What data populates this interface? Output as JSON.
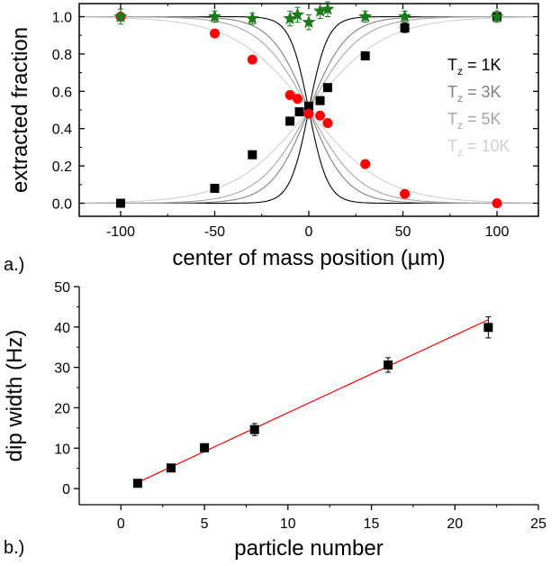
{
  "chart_data": [
    {
      "type": "scatter",
      "panel_label": "a.)",
      "xlabel": "center of mass position  (µm)",
      "ylabel": "extracted fraction",
      "xlim": [
        -122,
        122
      ],
      "ylim": [
        -0.07,
        1.07
      ],
      "xticks": [
        -100,
        -50,
        0,
        50,
        100
      ],
      "xtick_labels": [
        "-100",
        "-50",
        "0",
        "50",
        "100"
      ],
      "yticks": [
        0.0,
        0.2,
        0.4,
        0.6,
        0.8,
        1.0
      ],
      "ytick_labels": [
        "0.0",
        "0.2",
        "0.4",
        "0.6",
        "0.8",
        "1.0"
      ],
      "grid": false,
      "legend_position": "right",
      "legend": [
        {
          "prefix": "T",
          "sub": "z",
          "rest": " = 1K",
          "color": "#000000"
        },
        {
          "prefix": "T",
          "sub": "z",
          "rest": " = 3K",
          "color": "#7f7f7f"
        },
        {
          "prefix": "T",
          "sub": "z",
          "rest": " = 5K",
          "color": "#a6a6a6"
        },
        {
          "prefix": "T",
          "sub": "z",
          "rest": " = 10K",
          "color": "#cfcfcf"
        }
      ],
      "series": [
        {
          "marker": "square",
          "color": "#000000",
          "x": [
            -100,
            -50,
            -30,
            -10,
            -5,
            0,
            6,
            10,
            30,
            51,
            100
          ],
          "y": [
            0.0,
            0.08,
            0.26,
            0.44,
            0.49,
            0.52,
            0.55,
            0.62,
            0.79,
            0.94,
            1.0
          ],
          "err": [
            0.02,
            0.02,
            0.02,
            0.02,
            0.02,
            0.02,
            0.02,
            0.02,
            0.02,
            0.025,
            0.02
          ]
        },
        {
          "marker": "circle",
          "color": "#ff0000",
          "x": [
            -100,
            -50,
            -30,
            -10,
            -6,
            0,
            6,
            10,
            30,
            51,
            100
          ],
          "y": [
            1.0,
            0.91,
            0.77,
            0.58,
            0.56,
            0.48,
            0.47,
            0.43,
            0.21,
            0.05,
            0.0
          ],
          "err": [
            0.02,
            0.02,
            0.02,
            0.02,
            0.02,
            0.02,
            0.02,
            0.02,
            0.02,
            0.02,
            0.02
          ]
        },
        {
          "marker": "star",
          "color": "#1a7a1a",
          "x": [
            -100,
            -50,
            -30,
            -10,
            -6,
            0,
            6,
            10,
            30,
            51,
            100
          ],
          "y": [
            1.0,
            1.0,
            0.99,
            0.99,
            1.01,
            0.97,
            1.03,
            1.04,
            1.0,
            1.0,
            1.0
          ],
          "err": [
            0.04,
            0.03,
            0.03,
            0.04,
            0.04,
            0.04,
            0.04,
            0.04,
            0.03,
            0.03,
            0.03
          ]
        }
      ],
      "curves": [
        {
          "width": 10,
          "color": "#000000"
        },
        {
          "width": 20,
          "color": "#7f7f7f"
        },
        {
          "width": 27,
          "color": "#a6a6a6"
        },
        {
          "width": 40,
          "color": "#cfcfcf"
        }
      ]
    },
    {
      "type": "scatter",
      "panel_label": "b.)",
      "xlabel": "particle number",
      "ylabel": "dip width (Hz)",
      "xlim": [
        -2.5,
        25
      ],
      "ylim": [
        -4,
        50
      ],
      "xticks": [
        0,
        5,
        10,
        15,
        20,
        25
      ],
      "xtick_labels": [
        "0",
        "5",
        "10",
        "15",
        "20",
        "25"
      ],
      "yticks": [
        0,
        10,
        20,
        30,
        40,
        50
      ],
      "ytick_labels": [
        "0",
        "10",
        "20",
        "30",
        "40",
        "50"
      ],
      "grid": false,
      "series": [
        {
          "marker": "square",
          "color": "#000000",
          "x": [
            1,
            3,
            5,
            8,
            16,
            22
          ],
          "y": [
            1.3,
            5.1,
            10.1,
            14.6,
            30.6,
            39.9
          ],
          "err": [
            0.6,
            0.7,
            1.0,
            1.5,
            1.8,
            2.6
          ]
        }
      ],
      "fit_line": {
        "color": "#ff0000",
        "x": [
          1,
          22
        ],
        "y": [
          1.5,
          41.8
        ]
      }
    }
  ]
}
